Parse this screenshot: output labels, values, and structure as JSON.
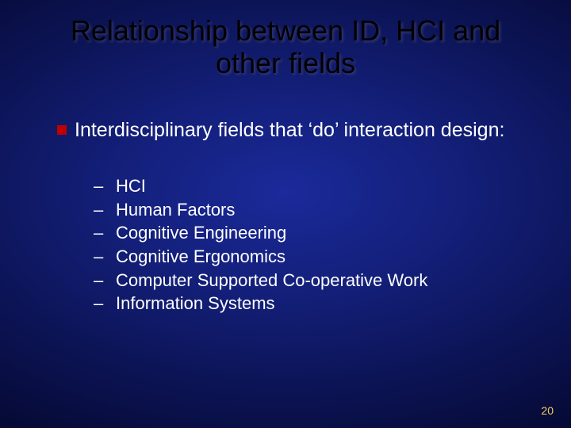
{
  "colors": {
    "background_gradient_inner": "#1a2a9a",
    "background_gradient_mid1": "#131f78",
    "background_gradient_mid2": "#0b1250",
    "background_gradient_outer": "#050830",
    "title_text": "#000000",
    "body_text": "#ffffff",
    "bullet_square": "#c00000",
    "slide_number": "#f0d060"
  },
  "typography": {
    "title_fontsize": 36,
    "lead_fontsize": 25,
    "sub_fontsize": 22,
    "slide_number_fontsize": 14,
    "font_family": "Arial"
  },
  "title": "Relationship between ID, HCI and other fields",
  "lead": "Interdisciplinary fields that ‘do’ interaction design:",
  "sub_items": [
    "HCI",
    "Human Factors",
    "Cognitive Engineering",
    "Cognitive Ergonomics",
    "Computer Supported Co-operative Work",
    "Information Systems"
  ],
  "dash": "–",
  "slide_number": "20"
}
